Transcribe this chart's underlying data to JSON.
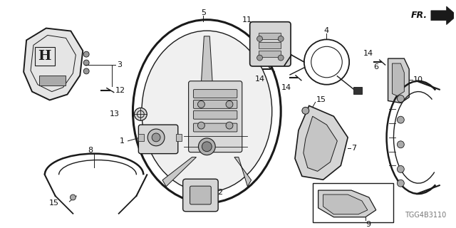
{
  "bg_color": "#ffffff",
  "diagram_code": "TGG4B3110",
  "line_color": "#1a1a1a",
  "text_color": "#111111",
  "gray_color": "#777777",
  "font_size_labels": 8,
  "font_size_code": 7,
  "figsize": [
    6.4,
    3.2
  ],
  "dpi": 100
}
